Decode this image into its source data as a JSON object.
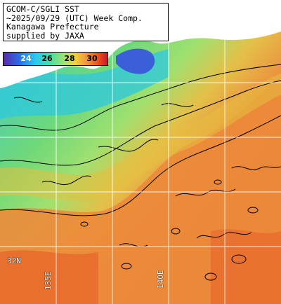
{
  "title_lines": [
    "GCOM-C/SGLI SST",
    "~2025/09/29 (UTC) Week Comp.",
    "Kanagawa Prefecture",
    "supplied by JAXA"
  ],
  "colorbar": {
    "labels": [
      "24",
      "26",
      "28",
      "30"
    ],
    "colors": [
      "#5a2aa8",
      "#2a6ee8",
      "#2ac8f0",
      "#4ae0a0",
      "#a8e070",
      "#f0d040",
      "#f09040",
      "#e84020",
      "#c01030"
    ]
  },
  "grid_labels": {
    "lat": "32N",
    "lon_west": "135E",
    "lon_east": "140E"
  },
  "colors": {
    "land": "#ffffff",
    "warm_sea": "#ec8a3a",
    "hot_sea": "#e65a22",
    "mid_sea": "#e6c040",
    "cool_sea": "#7fd86a",
    "cold_sea": "#31c9d9",
    "coldest_sea": "#3a5fd8",
    "contour": "#000000",
    "grid": "#ffffff"
  }
}
